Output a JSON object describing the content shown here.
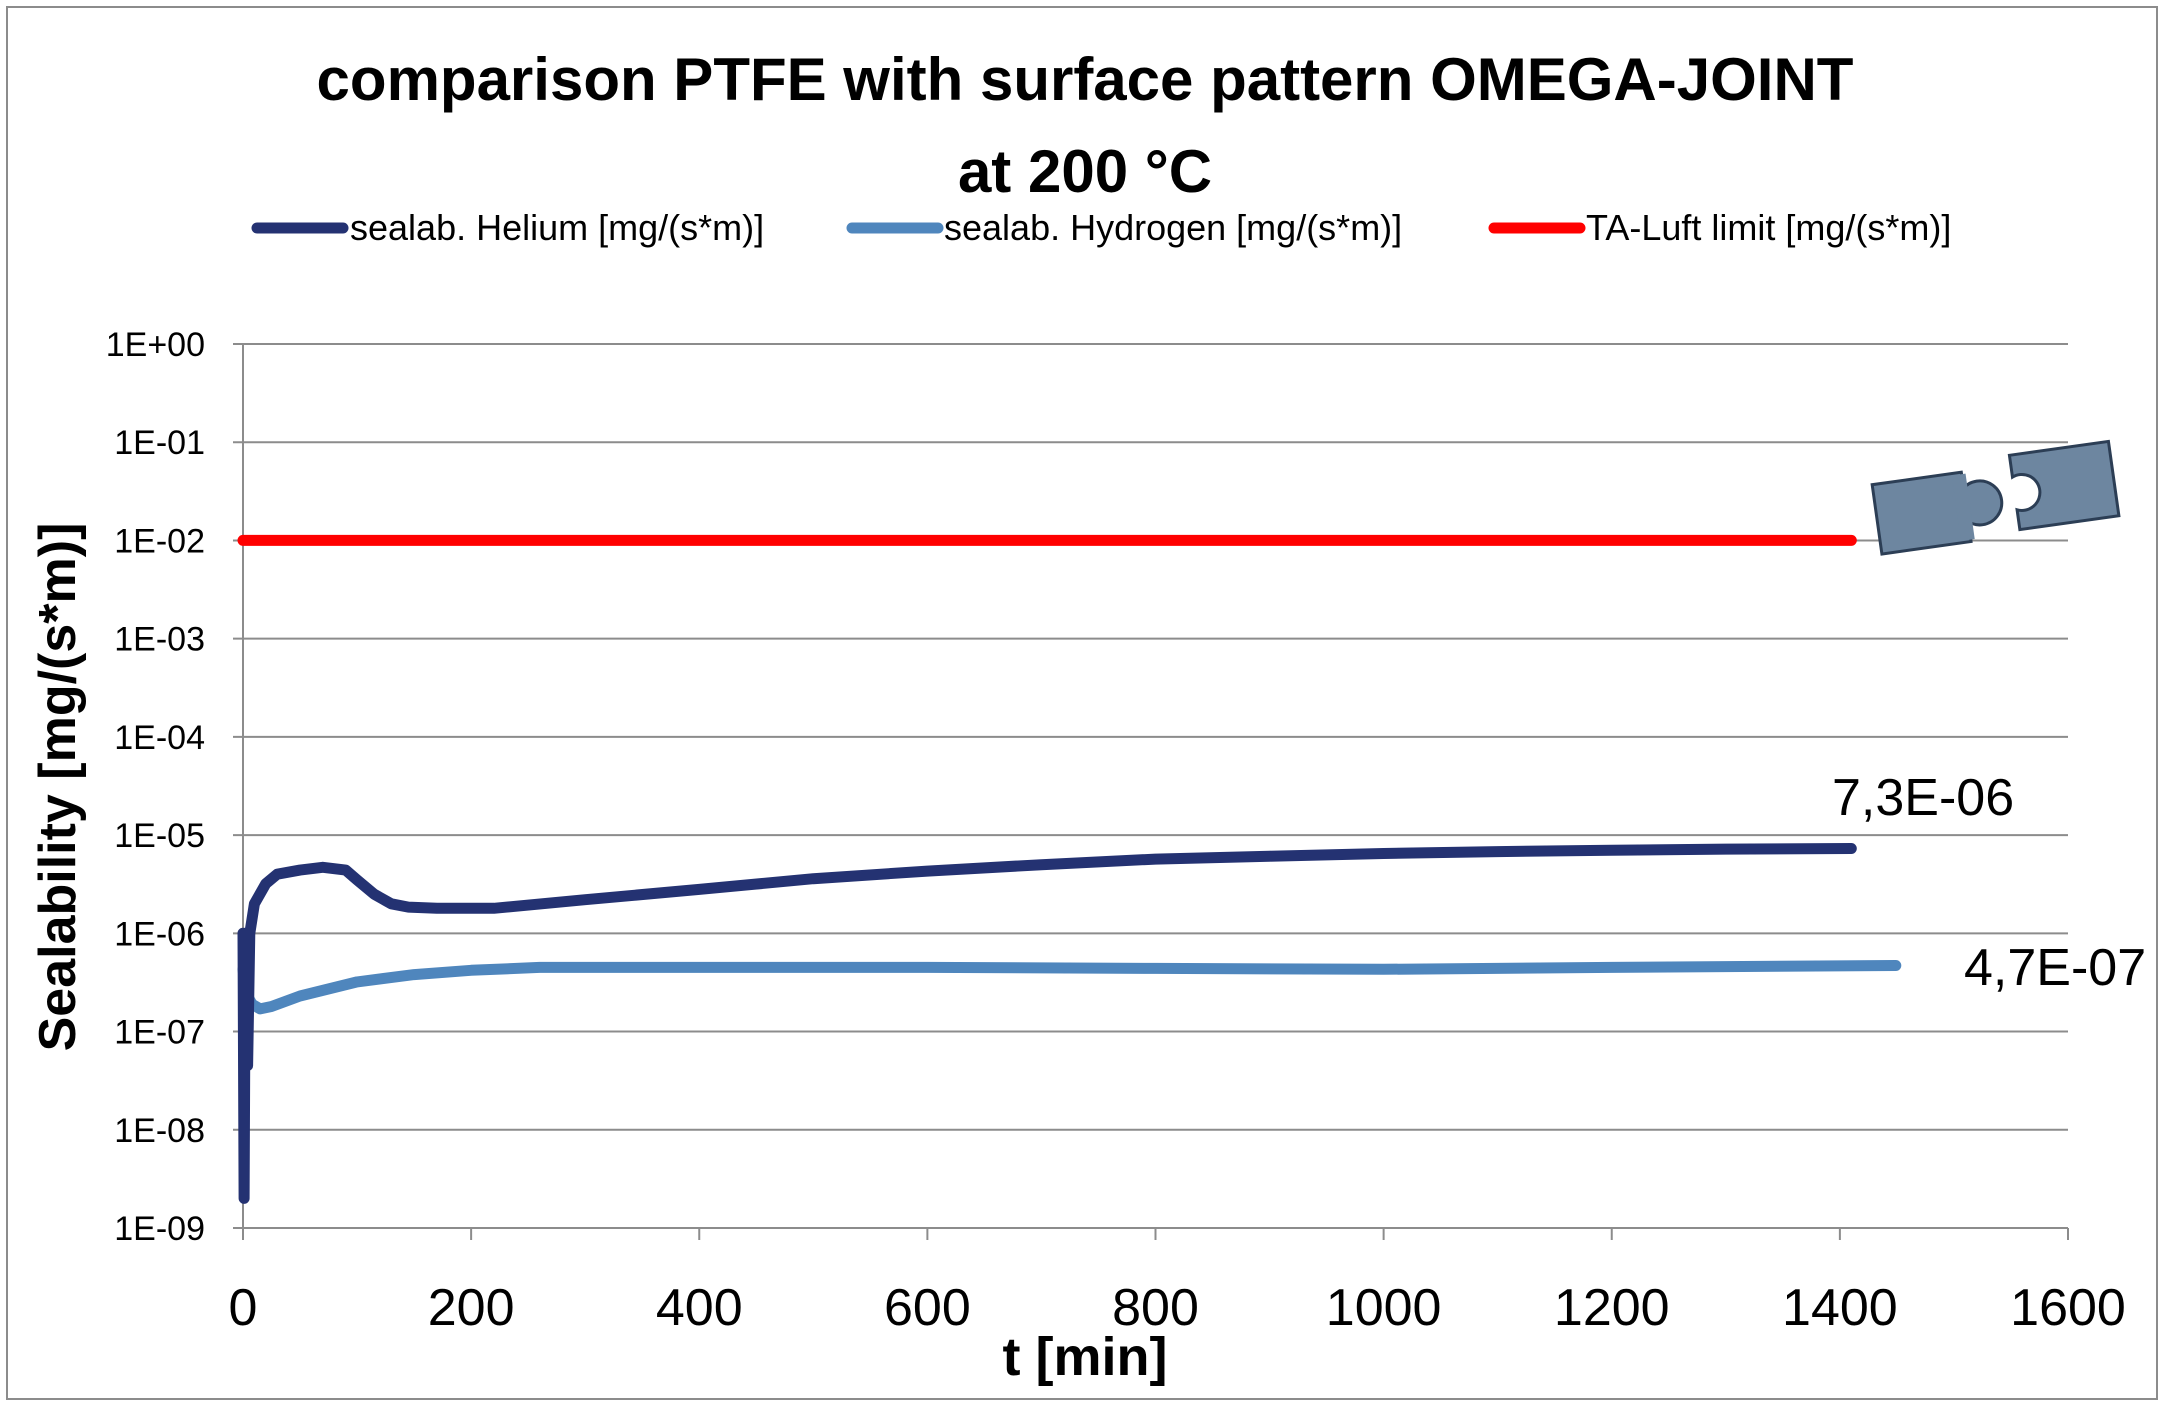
{
  "chart_data": {
    "type": "line",
    "title": "comparison PTFE with surface pattern OMEGA-JOINT",
    "subtitle": "at 200 °C",
    "xlabel": "t [min]",
    "ylabel": "Sealability [mg/(s*m)]",
    "xlim": [
      0,
      1600
    ],
    "ylim": [
      1e-09,
      1
    ],
    "yscale": "log",
    "grid": true,
    "legend_position": "top",
    "x_ticks": [
      "0",
      "200",
      "400",
      "600",
      "800",
      "1000",
      "1200",
      "1400",
      "1600"
    ],
    "y_ticks": [
      "1E+00",
      "1E-01",
      "1E-02",
      "1E-03",
      "1E-04",
      "1E-05",
      "1E-06",
      "1E-07",
      "1E-08",
      "1E-09"
    ],
    "series": [
      {
        "name": "sealab. Helium [mg/(s*m)]",
        "color": "#243272",
        "x": [
          0,
          1,
          2,
          4,
          6,
          10,
          20,
          30,
          50,
          70,
          90,
          100,
          115,
          130,
          145,
          170,
          220,
          300,
          400,
          500,
          600,
          700,
          800,
          900,
          1000,
          1100,
          1200,
          1300,
          1410
        ],
        "y": [
          1e-06,
          2e-09,
          1e-06,
          4.5e-08,
          1e-06,
          2e-06,
          3.2e-06,
          4e-06,
          4.4e-06,
          4.7e-06,
          4.4e-06,
          3.5e-06,
          2.5e-06,
          2e-06,
          1.85e-06,
          1.8e-06,
          1.8e-06,
          2.2e-06,
          2.8e-06,
          3.6e-06,
          4.3e-06,
          5e-06,
          5.7e-06,
          6.1e-06,
          6.5e-06,
          6.8e-06,
          7e-06,
          7.2e-06,
          7.3e-06
        ]
      },
      {
        "name": "sealab. Hydrogen [mg/(s*m)]",
        "color": "#4f86bd",
        "x": [
          0,
          3,
          8,
          15,
          25,
          50,
          100,
          150,
          200,
          260,
          400,
          600,
          800,
          1000,
          1200,
          1449
        ],
        "y": [
          4.3e-07,
          2.4e-07,
          1.9e-07,
          1.7e-07,
          1.8e-07,
          2.3e-07,
          3.2e-07,
          3.8e-07,
          4.2e-07,
          4.5e-07,
          4.5e-07,
          4.5e-07,
          4.4e-07,
          4.3e-07,
          4.5e-07,
          4.7e-07
        ]
      },
      {
        "name": "TA-Luft limit [mg/(s*m)]",
        "color": "#ff0000",
        "x": [
          0,
          1410
        ],
        "y": [
          0.01,
          0.01
        ]
      }
    ],
    "annotations": [
      {
        "text": "7,3E-06",
        "x": 1410,
        "y": 7.3e-06
      },
      {
        "text": "4,7E-07",
        "x": 1449,
        "y": 4.7e-07
      }
    ]
  }
}
